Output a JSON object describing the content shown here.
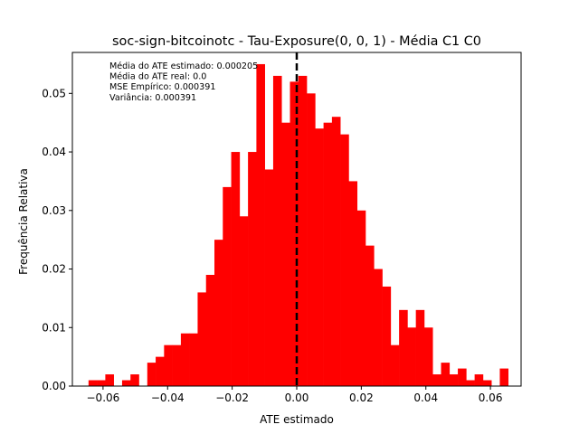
{
  "chart_data": {
    "type": "bar",
    "title": "soc-sign-bitcoinotc - Tau-Exposure(0, 0, 1) - Média C1 C0",
    "xlabel": "ATE estimado",
    "ylabel": "Frequência Relativa",
    "xlim": [
      -0.0695,
      0.0695
    ],
    "ylim": [
      0,
      0.057
    ],
    "xticks": [
      {
        "value": -0.06,
        "label": "−0.06"
      },
      {
        "value": -0.04,
        "label": "−0.04"
      },
      {
        "value": -0.02,
        "label": "−0.02"
      },
      {
        "value": 0.0,
        "label": "0.00"
      },
      {
        "value": 0.02,
        "label": "0.02"
      },
      {
        "value": 0.04,
        "label": "0.04"
      },
      {
        "value": 0.06,
        "label": "0.06"
      }
    ],
    "yticks": [
      {
        "value": 0.0,
        "label": "0.00"
      },
      {
        "value": 0.01,
        "label": "0.01"
      },
      {
        "value": 0.02,
        "label": "0.02"
      },
      {
        "value": 0.03,
        "label": "0.03"
      },
      {
        "value": 0.04,
        "label": "0.04"
      },
      {
        "value": 0.05,
        "label": "0.05"
      }
    ],
    "bar_color": "#ff0000",
    "bin_edges": [
      -0.0645,
      -0.0619,
      -0.0593,
      -0.0567,
      -0.0541,
      -0.0515,
      -0.0489,
      -0.0463,
      -0.0437,
      -0.0411,
      -0.0385,
      -0.0359,
      -0.0333,
      -0.0307,
      -0.0281,
      -0.0255,
      -0.0229,
      -0.0203,
      -0.0177,
      -0.0151,
      -0.0125,
      -0.0099,
      -0.0073,
      -0.0047,
      -0.0021,
      0.0005,
      0.0031,
      0.0057,
      0.0083,
      0.0109,
      0.0135,
      0.0161,
      0.0187,
      0.0213,
      0.0239,
      0.0265,
      0.0291,
      0.0317,
      0.0343,
      0.0369,
      0.0395,
      0.0421,
      0.0447,
      0.0473,
      0.0499,
      0.0525,
      0.0551,
      0.0577,
      0.0603,
      0.0629
    ],
    "values": [
      0.001,
      0.001,
      0.002,
      0.0,
      0.001,
      0.002,
      0.0,
      0.004,
      0.005,
      0.007,
      0.007,
      0.009,
      0.009,
      0.016,
      0.019,
      0.025,
      0.034,
      0.04,
      0.029,
      0.04,
      0.055,
      0.037,
      0.053,
      0.045,
      0.052,
      0.053,
      0.05,
      0.044,
      0.045,
      0.046,
      0.043,
      0.035,
      0.03,
      0.024,
      0.02,
      0.017,
      0.007,
      0.013,
      0.01,
      0.013,
      0.01,
      0.002,
      0.004,
      0.002,
      0.003,
      0.001,
      0.002,
      0.001,
      0.0,
      0.003
    ],
    "vline": {
      "x": 0.0,
      "style": "dashed",
      "color": "#000000"
    },
    "annotations": [
      "Média do ATE estimado: 0.000205",
      "Média do ATE real: 0.0",
      "MSE Empírico: 0.000391",
      "Variância: 0.000391"
    ],
    "grid": false,
    "legend": "none"
  }
}
